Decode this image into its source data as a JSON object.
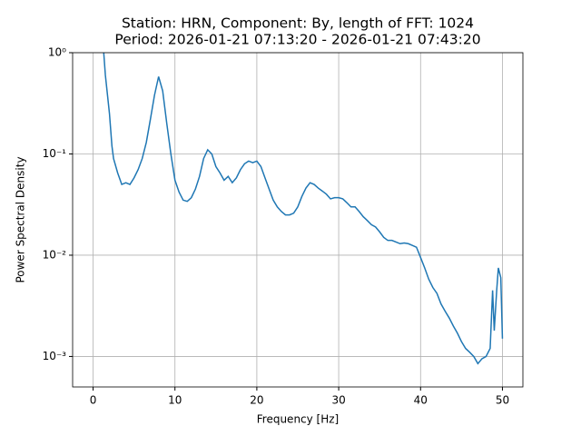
{
  "chart_data": {
    "type": "line",
    "title": "Station: HRN, Component: By, length of FFT: 1024",
    "subtitle": "Period: 2026-01-21 07:13:20 - 2026-01-21 07:43:20",
    "x_label": "Frequency [Hz]",
    "y_label": "Power Spectral Density",
    "x": [
      1.3,
      1.5,
      2,
      2.3,
      2.5,
      3,
      3.5,
      4,
      4.5,
      5,
      5.5,
      6,
      6.5,
      7,
      7.5,
      8,
      8.5,
      9,
      9.5,
      10,
      10.5,
      11,
      11.5,
      12,
      12.5,
      13,
      13.5,
      14,
      14.5,
      15,
      15.5,
      16,
      16.5,
      17,
      17.5,
      18,
      18.5,
      19,
      19.5,
      20,
      20.5,
      21,
      21.5,
      22,
      22.5,
      23,
      23.5,
      24,
      24.5,
      25,
      25.5,
      26,
      26.5,
      27,
      27.5,
      28,
      28.5,
      29,
      29.5,
      30,
      30.5,
      31,
      31.5,
      32,
      32.5,
      33,
      33.5,
      34,
      34.5,
      35,
      35.5,
      36,
      36.5,
      37,
      37.5,
      38,
      38.5,
      39,
      39.5,
      40,
      40.5,
      41,
      41.5,
      42,
      42.5,
      43,
      43.5,
      44,
      44.5,
      45,
      45.5,
      46,
      46.5,
      47,
      47.5,
      48,
      48.5,
      48.8,
      49,
      49.3,
      49.5,
      49.8,
      50
    ],
    "series": [
      {
        "name": "PSD",
        "color": "#1f77b4",
        "values": [
          1.0,
          0.6,
          0.25,
          0.12,
          0.09,
          0.065,
          0.05,
          0.052,
          0.05,
          0.058,
          0.07,
          0.09,
          0.13,
          0.22,
          0.38,
          0.58,
          0.42,
          0.2,
          0.1,
          0.055,
          0.042,
          0.035,
          0.034,
          0.037,
          0.045,
          0.06,
          0.09,
          0.11,
          0.1,
          0.075,
          0.065,
          0.055,
          0.06,
          0.052,
          0.058,
          0.07,
          0.08,
          0.085,
          0.082,
          0.085,
          0.075,
          0.058,
          0.045,
          0.035,
          0.03,
          0.027,
          0.025,
          0.025,
          0.026,
          0.03,
          0.038,
          0.046,
          0.052,
          0.05,
          0.046,
          0.043,
          0.04,
          0.036,
          0.037,
          0.037,
          0.036,
          0.033,
          0.03,
          0.03,
          0.027,
          0.024,
          0.022,
          0.02,
          0.019,
          0.017,
          0.015,
          0.014,
          0.014,
          0.0135,
          0.013,
          0.0132,
          0.013,
          0.0125,
          0.012,
          0.0095,
          0.0075,
          0.0058,
          0.0048,
          0.0042,
          0.0033,
          0.0028,
          0.0024,
          0.002,
          0.0017,
          0.0014,
          0.0012,
          0.0011,
          0.001,
          0.00085,
          0.00095,
          0.001,
          0.0012,
          0.0045,
          0.0018,
          0.0045,
          0.0075,
          0.006,
          0.0015
        ]
      }
    ],
    "xlim": [
      -2.5,
      52.5
    ],
    "xticks": [
      0,
      10,
      20,
      30,
      40,
      50
    ],
    "ylim": [
      0.0005,
      1
    ],
    "ylog": true,
    "yticks": [
      {
        "value": 0.001,
        "label": "10⁻³"
      },
      {
        "value": 0.01,
        "label": "10⁻²"
      },
      {
        "value": 0.1,
        "label": "10⁻¹"
      },
      {
        "value": 1,
        "label": "10⁰"
      }
    ],
    "grid": true
  }
}
